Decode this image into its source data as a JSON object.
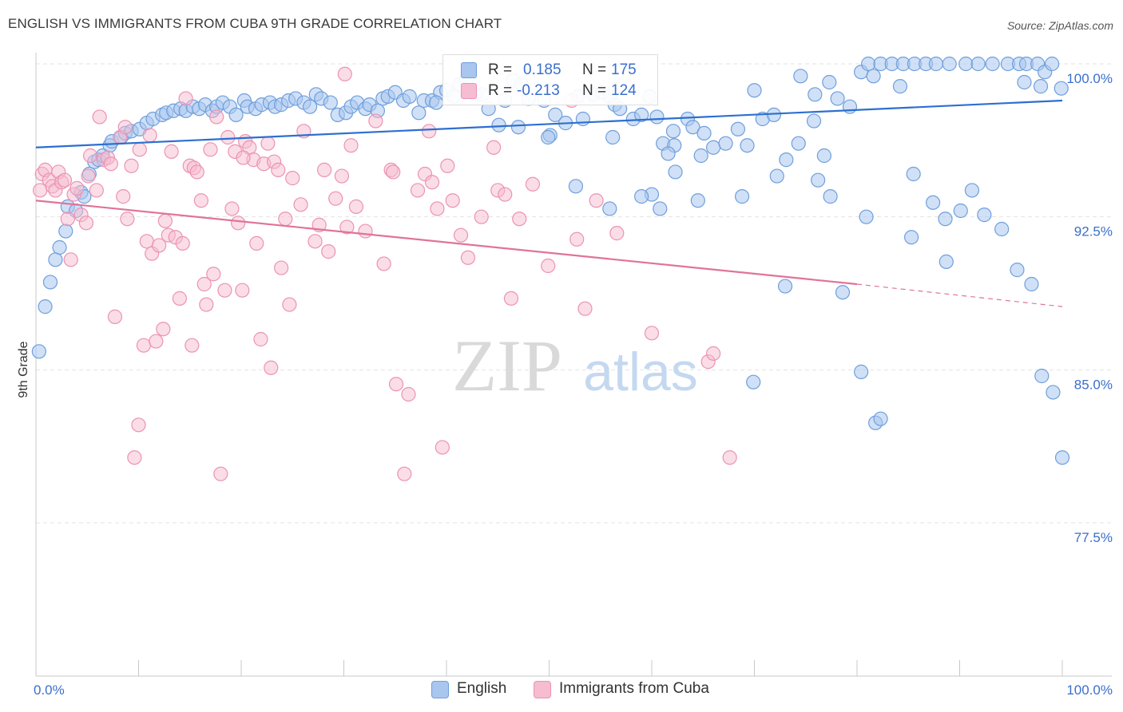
{
  "title": "ENGLISH VS IMMIGRANTS FROM CUBA 9TH GRADE CORRELATION CHART",
  "source": "Source: ZipAtlas.com",
  "watermark": {
    "zip": "ZIP",
    "atlas": "atlas"
  },
  "colors": {
    "english_fill": "#a9c6ee",
    "english_stroke": "#6f9fdc",
    "english_line": "#2d6fd0",
    "cuba_fill": "#f6bcd0",
    "cuba_stroke": "#ec93b2",
    "cuba_line": "#e0739b",
    "axis_text_blue": "#3a6fcc",
    "grid": "#e3e3e3"
  },
  "stats_legend": {
    "rows": [
      {
        "r_label": "R =",
        "r_value": "0.185",
        "n_label": "N =",
        "n_value": "175"
      },
      {
        "r_label": "R =",
        "r_value": "-0.213",
        "n_label": "N =",
        "n_value": "124"
      }
    ]
  },
  "bottom_legend": [
    "English",
    "Immigrants from Cuba"
  ],
  "chart_data": {
    "type": "scatter",
    "title": "ENGLISH VS IMMIGRANTS FROM CUBA 9TH GRADE CORRELATION CHART",
    "xlabel": "",
    "ylabel": "9th Grade",
    "xlim": [
      0,
      100
    ],
    "ylim": [
      70.0,
      101.5
    ],
    "x_tick_labels": [
      "0.0%",
      "100.0%"
    ],
    "y_ticks": [
      77.5,
      85.0,
      92.5,
      100.0
    ],
    "y_tick_labels": [
      "77.5%",
      "85.0%",
      "92.5%",
      "100.0%"
    ],
    "grid": true,
    "legend_position": "bottom",
    "series": [
      {
        "name": "English",
        "r": 0.185,
        "n": 175,
        "trend": {
          "x": [
            0,
            100
          ],
          "y": [
            95.9,
            98.2
          ]
        },
        "points": [
          [
            0.3,
            85.9
          ],
          [
            0.9,
            88.1
          ],
          [
            1.4,
            89.3
          ],
          [
            1.9,
            90.4
          ],
          [
            2.3,
            91.0
          ],
          [
            2.9,
            91.8
          ],
          [
            3.1,
            93.0
          ],
          [
            3.9,
            92.8
          ],
          [
            4.4,
            93.7
          ],
          [
            4.7,
            93.5
          ],
          [
            5.2,
            94.6
          ],
          [
            5.7,
            95.2
          ],
          [
            6.1,
            95.3
          ],
          [
            6.5,
            95.5
          ],
          [
            7.2,
            96.0
          ],
          [
            7.4,
            96.2
          ],
          [
            8.3,
            96.4
          ],
          [
            8.7,
            96.6
          ],
          [
            9.3,
            96.7
          ],
          [
            10.1,
            96.8
          ],
          [
            10.8,
            97.1
          ],
          [
            11.4,
            97.3
          ],
          [
            12.3,
            97.5
          ],
          [
            12.7,
            97.6
          ],
          [
            13.4,
            97.7
          ],
          [
            14.1,
            97.8
          ],
          [
            14.6,
            97.7
          ],
          [
            15.3,
            97.9
          ],
          [
            15.9,
            97.8
          ],
          [
            16.5,
            98.0
          ],
          [
            17.2,
            97.7
          ],
          [
            17.6,
            97.9
          ],
          [
            18.2,
            98.1
          ],
          [
            18.9,
            97.9
          ],
          [
            19.5,
            97.5
          ],
          [
            20.3,
            98.2
          ],
          [
            20.6,
            97.9
          ],
          [
            21.4,
            97.8
          ],
          [
            22.0,
            98.0
          ],
          [
            22.8,
            98.1
          ],
          [
            23.3,
            97.9
          ],
          [
            23.9,
            98.0
          ],
          [
            24.6,
            98.2
          ],
          [
            25.3,
            98.3
          ],
          [
            26.1,
            98.1
          ],
          [
            26.7,
            97.9
          ],
          [
            27.3,
            98.5
          ],
          [
            27.8,
            98.3
          ],
          [
            28.7,
            98.1
          ],
          [
            29.4,
            97.5
          ],
          [
            30.2,
            97.6
          ],
          [
            30.7,
            97.9
          ],
          [
            31.3,
            98.1
          ],
          [
            32.1,
            97.8
          ],
          [
            32.5,
            98.0
          ],
          [
            33.3,
            97.7
          ],
          [
            33.8,
            98.3
          ],
          [
            34.3,
            98.4
          ],
          [
            35.0,
            98.6
          ],
          [
            35.8,
            98.2
          ],
          [
            36.4,
            98.4
          ],
          [
            37.3,
            97.6
          ],
          [
            37.8,
            98.2
          ],
          [
            38.6,
            98.2
          ],
          [
            39.4,
            98.6
          ],
          [
            40.0,
            98.7
          ],
          [
            40.7,
            98.4
          ],
          [
            41.3,
            99.0
          ],
          [
            41.9,
            99.2
          ],
          [
            42.8,
            98.5
          ],
          [
            43.5,
            98.5
          ],
          [
            44.1,
            97.8
          ],
          [
            45.1,
            97.0
          ],
          [
            45.7,
            98.2
          ],
          [
            46.5,
            99.2
          ],
          [
            47.3,
            99.0
          ],
          [
            48.0,
            98.3
          ],
          [
            49.5,
            98.2
          ],
          [
            50.6,
            97.5
          ],
          [
            51.6,
            97.1
          ],
          [
            52.8,
            98.4
          ],
          [
            54.3,
            98.5
          ],
          [
            55.2,
            98.6
          ],
          [
            55.9,
            98.4
          ],
          [
            56.4,
            98.0
          ],
          [
            56.9,
            97.8
          ],
          [
            58.2,
            97.3
          ],
          [
            59.0,
            97.5
          ],
          [
            59.8,
            98.4
          ],
          [
            60.5,
            97.4
          ],
          [
            61.1,
            96.1
          ],
          [
            62.2,
            96.0
          ],
          [
            63.5,
            97.3
          ],
          [
            64.0,
            96.9
          ],
          [
            65.1,
            96.6
          ],
          [
            66.0,
            95.9
          ],
          [
            67.2,
            96.1
          ],
          [
            68.4,
            96.8
          ],
          [
            69.3,
            96.0
          ],
          [
            70.8,
            97.3
          ],
          [
            71.9,
            97.5
          ],
          [
            73.1,
            95.3
          ],
          [
            74.3,
            96.1
          ],
          [
            75.8,
            97.2
          ],
          [
            76.8,
            95.5
          ],
          [
            78.1,
            98.3
          ],
          [
            79.3,
            97.9
          ],
          [
            80.4,
            99.6
          ],
          [
            81.1,
            100.0
          ],
          [
            82.3,
            100.0
          ],
          [
            83.4,
            100.0
          ],
          [
            84.5,
            100.0
          ],
          [
            85.6,
            100.0
          ],
          [
            86.7,
            100.0
          ],
          [
            87.7,
            100.0
          ],
          [
            89.0,
            100.0
          ],
          [
            90.6,
            100.0
          ],
          [
            91.8,
            100.0
          ],
          [
            93.2,
            100.0
          ],
          [
            94.7,
            100.0
          ],
          [
            95.8,
            100.0
          ],
          [
            96.5,
            100.0
          ],
          [
            97.6,
            100.0
          ],
          [
            98.3,
            99.6
          ],
          [
            99.0,
            100.0
          ],
          [
            99.9,
            98.8
          ],
          [
            39.0,
            98.1
          ],
          [
            50.1,
            96.5
          ],
          [
            56.2,
            96.4
          ],
          [
            61.6,
            95.6
          ],
          [
            64.8,
            95.5
          ],
          [
            72.2,
            94.5
          ],
          [
            76.2,
            94.3
          ],
          [
            77.4,
            93.5
          ],
          [
            80.9,
            92.5
          ],
          [
            85.5,
            94.6
          ],
          [
            87.4,
            93.2
          ],
          [
            88.6,
            92.4
          ],
          [
            90.1,
            92.8
          ],
          [
            91.2,
            93.8
          ],
          [
            92.4,
            92.6
          ],
          [
            94.1,
            91.9
          ],
          [
            95.6,
            89.9
          ],
          [
            97.0,
            89.2
          ],
          [
            98.0,
            84.7
          ],
          [
            99.1,
            83.9
          ],
          [
            100.0,
            80.7
          ],
          [
            52.6,
            94.0
          ],
          [
            55.9,
            92.9
          ],
          [
            60.0,
            93.6
          ],
          [
            64.5,
            93.3
          ],
          [
            68.8,
            93.5
          ],
          [
            73.0,
            89.1
          ],
          [
            78.6,
            88.8
          ],
          [
            69.9,
            84.4
          ],
          [
            80.4,
            84.9
          ],
          [
            81.8,
            82.4
          ],
          [
            82.3,
            82.6
          ],
          [
            85.3,
            91.5
          ],
          [
            88.7,
            90.3
          ],
          [
            60.8,
            92.9
          ],
          [
            59.0,
            93.5
          ],
          [
            62.3,
            94.7
          ],
          [
            70.0,
            98.7
          ],
          [
            74.5,
            99.4
          ],
          [
            75.9,
            98.5
          ],
          [
            77.3,
            99.1
          ],
          [
            81.6,
            99.4
          ],
          [
            84.2,
            98.9
          ],
          [
            96.3,
            99.1
          ],
          [
            97.9,
            98.9
          ],
          [
            47.0,
            96.9
          ],
          [
            49.9,
            96.4
          ],
          [
            53.3,
            97.3
          ],
          [
            62.1,
            96.7
          ]
        ]
      },
      {
        "name": "Immigrants from Cuba",
        "r": -0.213,
        "n": 124,
        "trend": {
          "x": [
            0,
            80
          ],
          "y": [
            93.3,
            89.2
          ],
          "dashed_to": [
            100,
            88.1
          ]
        },
        "points": [
          [
            0.4,
            93.8
          ],
          [
            0.6,
            94.6
          ],
          [
            0.9,
            94.8
          ],
          [
            1.3,
            94.3
          ],
          [
            1.6,
            94.0
          ],
          [
            1.9,
            93.8
          ],
          [
            2.2,
            94.7
          ],
          [
            2.5,
            94.2
          ],
          [
            2.8,
            94.3
          ],
          [
            3.1,
            92.4
          ],
          [
            3.4,
            90.4
          ],
          [
            3.7,
            93.6
          ],
          [
            4.0,
            93.9
          ],
          [
            4.4,
            92.6
          ],
          [
            4.9,
            92.2
          ],
          [
            5.1,
            94.5
          ],
          [
            5.3,
            95.5
          ],
          [
            5.9,
            93.8
          ],
          [
            6.2,
            97.4
          ],
          [
            6.6,
            95.3
          ],
          [
            7.0,
            95.4
          ],
          [
            7.3,
            95.1
          ],
          [
            7.7,
            87.6
          ],
          [
            8.2,
            96.4
          ],
          [
            8.5,
            93.5
          ],
          [
            8.7,
            96.9
          ],
          [
            8.9,
            92.4
          ],
          [
            9.3,
            95.0
          ],
          [
            9.6,
            80.7
          ],
          [
            10.0,
            82.3
          ],
          [
            10.1,
            95.8
          ],
          [
            10.5,
            86.2
          ],
          [
            10.8,
            91.3
          ],
          [
            11.1,
            96.5
          ],
          [
            11.3,
            90.7
          ],
          [
            11.7,
            86.4
          ],
          [
            12.0,
            91.1
          ],
          [
            12.4,
            87.0
          ],
          [
            12.6,
            92.3
          ],
          [
            12.9,
            91.6
          ],
          [
            13.2,
            95.7
          ],
          [
            13.6,
            91.5
          ],
          [
            14.0,
            88.5
          ],
          [
            14.3,
            91.2
          ],
          [
            14.6,
            98.3
          ],
          [
            15.0,
            95.0
          ],
          [
            15.2,
            86.2
          ],
          [
            15.4,
            94.9
          ],
          [
            15.7,
            94.7
          ],
          [
            16.1,
            93.3
          ],
          [
            16.4,
            89.2
          ],
          [
            16.6,
            88.2
          ],
          [
            17.0,
            95.8
          ],
          [
            17.3,
            89.7
          ],
          [
            17.6,
            97.4
          ],
          [
            18.0,
            79.9
          ],
          [
            18.4,
            88.9
          ],
          [
            18.7,
            96.4
          ],
          [
            19.1,
            92.9
          ],
          [
            19.4,
            95.7
          ],
          [
            19.7,
            92.2
          ],
          [
            20.1,
            88.9
          ],
          [
            20.4,
            96.2
          ],
          [
            20.8,
            95.9
          ],
          [
            21.2,
            95.3
          ],
          [
            21.5,
            91.2
          ],
          [
            21.9,
            86.5
          ],
          [
            22.2,
            95.1
          ],
          [
            22.6,
            96.1
          ],
          [
            22.9,
            85.1
          ],
          [
            23.2,
            95.2
          ],
          [
            23.6,
            94.8
          ],
          [
            23.9,
            90.0
          ],
          [
            24.3,
            92.4
          ],
          [
            24.7,
            88.2
          ],
          [
            25.0,
            94.4
          ],
          [
            26.1,
            96.7
          ],
          [
            27.2,
            91.3
          ],
          [
            27.6,
            92.1
          ],
          [
            28.1,
            94.8
          ],
          [
            28.5,
            90.8
          ],
          [
            29.2,
            93.4
          ],
          [
            29.8,
            94.5
          ],
          [
            30.3,
            92.0
          ],
          [
            30.7,
            96.0
          ],
          [
            31.2,
            93.0
          ],
          [
            32.1,
            91.8
          ],
          [
            33.1,
            97.2
          ],
          [
            33.9,
            90.2
          ],
          [
            34.6,
            94.8
          ],
          [
            35.1,
            84.3
          ],
          [
            35.9,
            79.9
          ],
          [
            36.3,
            83.8
          ],
          [
            37.2,
            93.8
          ],
          [
            37.9,
            94.6
          ],
          [
            38.6,
            94.2
          ],
          [
            39.1,
            92.9
          ],
          [
            39.6,
            81.2
          ],
          [
            40.1,
            95.0
          ],
          [
            40.6,
            93.3
          ],
          [
            41.4,
            91.6
          ],
          [
            42.1,
            90.5
          ],
          [
            43.4,
            92.5
          ],
          [
            45.0,
            93.8
          ],
          [
            45.7,
            93.6
          ],
          [
            46.3,
            88.5
          ],
          [
            47.1,
            92.4
          ],
          [
            48.4,
            94.1
          ],
          [
            49.9,
            90.1
          ],
          [
            52.2,
            98.2
          ],
          [
            52.7,
            91.4
          ],
          [
            53.5,
            88.0
          ],
          [
            54.6,
            93.3
          ],
          [
            56.6,
            91.7
          ],
          [
            60.0,
            86.8
          ],
          [
            65.5,
            85.4
          ],
          [
            66.0,
            85.8
          ],
          [
            67.6,
            80.7
          ],
          [
            30.1,
            99.5
          ],
          [
            44.6,
            95.9
          ],
          [
            20.2,
            95.4
          ],
          [
            25.8,
            93.1
          ],
          [
            34.8,
            94.7
          ],
          [
            38.3,
            96.7
          ]
        ]
      }
    ]
  }
}
